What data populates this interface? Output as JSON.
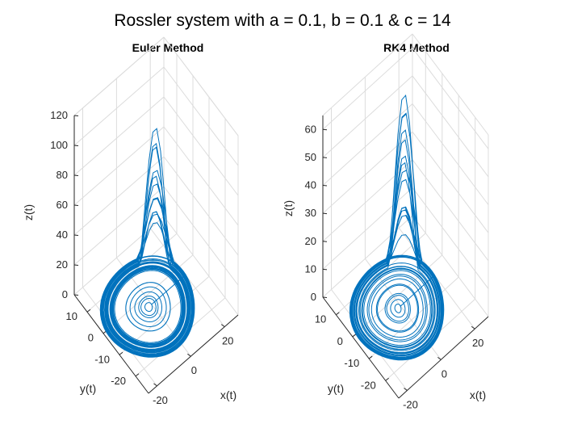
{
  "suptitle": "Rossler system with a = 0.1, b = 0.1 & c = 14",
  "chart_data": [
    {
      "type": "line3d",
      "title": "Euler Method",
      "xlabel": "x(t)",
      "ylabel": "y(t)",
      "zlabel": "z(t)",
      "xticks": [
        -20,
        0,
        20
      ],
      "yticks": [
        -20,
        -10,
        0,
        10
      ],
      "zticks": [
        0,
        20,
        40,
        60,
        80,
        100,
        120
      ],
      "xlim": [
        -25,
        28
      ],
      "ylim": [
        -28,
        18
      ],
      "zlim": [
        0,
        120
      ],
      "grid": true,
      "line_color": "#0072BD",
      "attractor": {
        "a": 0.1,
        "b": 0.1,
        "c": 14,
        "spiral_max_radius": 22,
        "peak_z": 113
      }
    },
    {
      "type": "line3d",
      "title": "RK4 Method",
      "xlabel": "x(t)",
      "ylabel": "y(t)",
      "zlabel": "z(t)",
      "xticks": [
        -20,
        0,
        20
      ],
      "yticks": [
        -20,
        -10,
        0,
        10
      ],
      "zticks": [
        0,
        10,
        20,
        30,
        40,
        50,
        60
      ],
      "xlim": [
        -25,
        28
      ],
      "ylim": [
        -28,
        18
      ],
      "zlim": [
        0,
        65
      ],
      "grid": true,
      "line_color": "#0072BD",
      "attractor": {
        "a": 0.1,
        "b": 0.1,
        "c": 14,
        "spiral_max_radius": 22,
        "peak_z": 60
      }
    }
  ]
}
